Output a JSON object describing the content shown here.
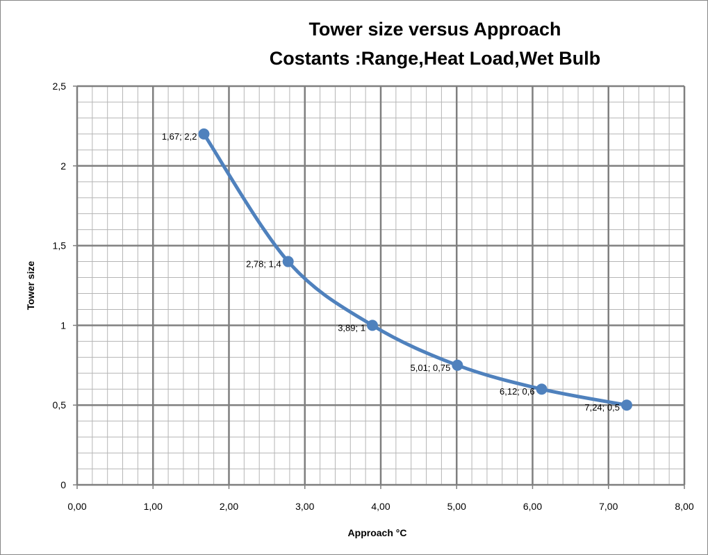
{
  "chart_data": {
    "type": "line",
    "title_line1": "Tower size versus Approach",
    "title_line2": "Costants :Range,Heat Load,Wet Bulb",
    "xlabel": "Approach °C",
    "ylabel": "Tower  size",
    "xlim": [
      0,
      8
    ],
    "ylim": [
      0,
      2.5
    ],
    "x_ticks": [
      "0,00",
      "1,00",
      "2,00",
      "3,00",
      "4,00",
      "5,00",
      "6,00",
      "7,00",
      "8,00"
    ],
    "y_ticks": [
      "0",
      "0,5",
      "1",
      "1,5",
      "2",
      "2,5"
    ],
    "grid": true,
    "legend": "none",
    "series": [
      {
        "name": "Tower size",
        "color": "#4F81BD",
        "x": [
          1.67,
          2.78,
          3.89,
          5.01,
          6.12,
          7.24
        ],
        "y": [
          2.2,
          1.4,
          1,
          0.75,
          0.6,
          0.5
        ],
        "labels": [
          "1,67; 2,2",
          "2,78; 1,4",
          "3,89; 1",
          "5,01; 0,75",
          "6,12; 0,6",
          "7,24; 0,5"
        ]
      }
    ]
  }
}
